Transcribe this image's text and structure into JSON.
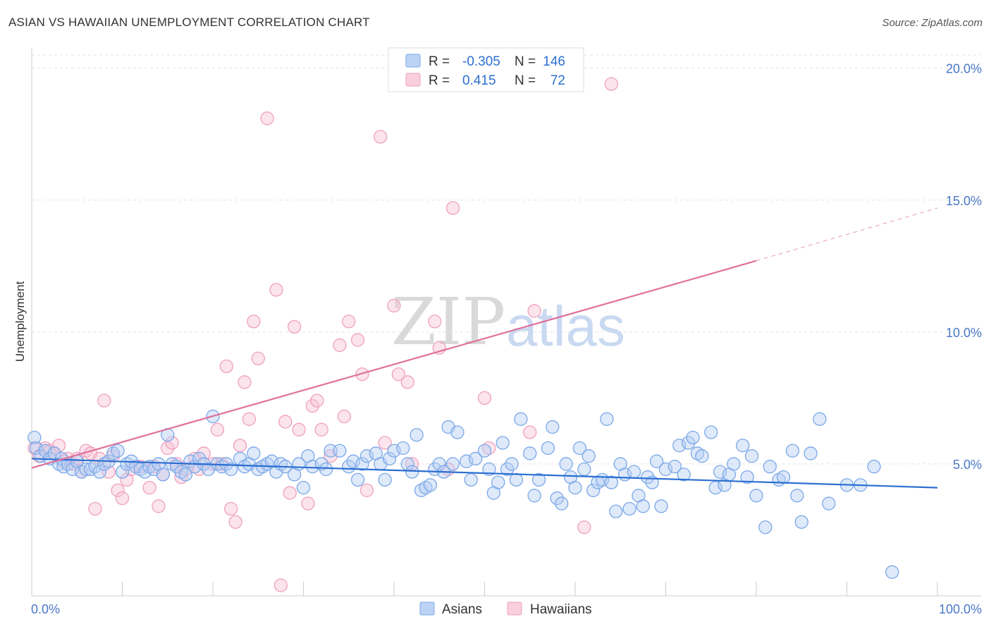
{
  "title": "ASIAN VS HAWAIIAN UNEMPLOYMENT CORRELATION CHART",
  "source": "Source: ZipAtlas.com",
  "watermark": {
    "zip": "ZIP",
    "atlas": "atlas"
  },
  "colors": {
    "asian": "#7aa8e8",
    "asian_line": "#2b6fd0",
    "hawaiian": "#f0a0bd",
    "hawaiian_line": "#e0709a",
    "tick": "#4a78c8"
  },
  "legend_top": {
    "rows": [
      {
        "r_label": "R =",
        "r_value": "-0.305",
        "n_label": "N =",
        "n_value": "146"
      },
      {
        "r_label": "R =",
        "r_value": "0.415",
        "n_label": "N =",
        "n_value": "72"
      }
    ]
  },
  "legend_bottom": [
    "Asians",
    "Hawaiians"
  ],
  "chart_data": {
    "type": "scatter",
    "title": "ASIAN VS HAWAIIAN UNEMPLOYMENT CORRELATION CHART",
    "xlabel": "",
    "ylabel": "Unemployment",
    "xlim": [
      0,
      100
    ],
    "ylim": [
      0,
      20.5
    ],
    "x_tick_labels": [
      "0.0%",
      "100.0%"
    ],
    "y_ticks": [
      5,
      10,
      15,
      20
    ],
    "y_tick_labels": [
      "5.0%",
      "10.0%",
      "15.0%",
      "20.0%"
    ],
    "grid": true,
    "legend_position": "top-center",
    "series": [
      {
        "name": "Asians",
        "r": -0.305,
        "n": 146,
        "trend": {
          "x0": 0,
          "y0": 5.2,
          "x1": 100,
          "y1": 4.1
        },
        "points": [
          [
            0.3,
            6.0
          ],
          [
            0.5,
            5.6
          ],
          [
            1.0,
            5.3
          ],
          [
            1.5,
            5.5
          ],
          [
            2.0,
            5.2
          ],
          [
            2.5,
            5.4
          ],
          [
            3.0,
            5.0
          ],
          [
            3.3,
            5.2
          ],
          [
            3.5,
            4.9
          ],
          [
            4.0,
            5.0
          ],
          [
            4.5,
            4.8
          ],
          [
            5.0,
            5.1
          ],
          [
            5.5,
            4.7
          ],
          [
            6.0,
            4.8
          ],
          [
            6.5,
            4.8
          ],
          [
            7.0,
            4.9
          ],
          [
            7.5,
            4.7
          ],
          [
            8.0,
            5.0
          ],
          [
            8.5,
            5.1
          ],
          [
            9.0,
            5.4
          ],
          [
            9.5,
            5.5
          ],
          [
            10.0,
            4.7
          ],
          [
            10.5,
            5.0
          ],
          [
            11.0,
            5.1
          ],
          [
            11.5,
            4.9
          ],
          [
            12.0,
            4.8
          ],
          [
            12.5,
            4.7
          ],
          [
            13.0,
            4.9
          ],
          [
            13.5,
            4.8
          ],
          [
            14.0,
            5.0
          ],
          [
            14.5,
            4.6
          ],
          [
            15.0,
            6.1
          ],
          [
            15.5,
            5.0
          ],
          [
            16.0,
            4.9
          ],
          [
            16.5,
            4.7
          ],
          [
            17.0,
            4.6
          ],
          [
            17.5,
            5.1
          ],
          [
            18.0,
            4.9
          ],
          [
            18.5,
            5.2
          ],
          [
            19.0,
            5.0
          ],
          [
            19.5,
            4.8
          ],
          [
            20.0,
            6.8
          ],
          [
            20.5,
            5.0
          ],
          [
            21.0,
            4.9
          ],
          [
            21.5,
            5.0
          ],
          [
            22.0,
            4.8
          ],
          [
            23.0,
            5.2
          ],
          [
            23.5,
            4.9
          ],
          [
            24.0,
            5.0
          ],
          [
            24.5,
            5.4
          ],
          [
            25.0,
            4.8
          ],
          [
            25.5,
            4.9
          ],
          [
            26.0,
            5.0
          ],
          [
            26.5,
            5.1
          ],
          [
            27.0,
            4.7
          ],
          [
            27.5,
            5.0
          ],
          [
            28.0,
            4.9
          ],
          [
            29.0,
            4.6
          ],
          [
            29.5,
            5.0
          ],
          [
            30.0,
            4.1
          ],
          [
            30.5,
            5.3
          ],
          [
            31.0,
            4.9
          ],
          [
            32.0,
            5.0
          ],
          [
            32.5,
            4.8
          ],
          [
            33.0,
            5.5
          ],
          [
            34.0,
            5.5
          ],
          [
            35.0,
            4.9
          ],
          [
            35.5,
            5.1
          ],
          [
            36.0,
            4.4
          ],
          [
            36.5,
            5.0
          ],
          [
            37.0,
            5.3
          ],
          [
            38.0,
            5.4
          ],
          [
            38.5,
            5.0
          ],
          [
            39.0,
            4.4
          ],
          [
            39.5,
            5.2
          ],
          [
            40.0,
            5.5
          ],
          [
            41.0,
            5.6
          ],
          [
            41.5,
            5.0
          ],
          [
            42.0,
            4.7
          ],
          [
            42.5,
            6.1
          ],
          [
            43.0,
            4.0
          ],
          [
            43.5,
            4.1
          ],
          [
            44.0,
            4.2
          ],
          [
            44.5,
            4.8
          ],
          [
            45.0,
            5.0
          ],
          [
            45.5,
            4.7
          ],
          [
            46.0,
            6.4
          ],
          [
            46.5,
            5.0
          ],
          [
            47.0,
            6.2
          ],
          [
            48.0,
            5.1
          ],
          [
            48.5,
            4.4
          ],
          [
            49.0,
            5.2
          ],
          [
            50.0,
            5.5
          ],
          [
            50.5,
            4.8
          ],
          [
            51.0,
            3.9
          ],
          [
            51.5,
            4.3
          ],
          [
            52.0,
            5.8
          ],
          [
            52.5,
            4.8
          ],
          [
            53.0,
            5.0
          ],
          [
            53.5,
            4.4
          ],
          [
            54.0,
            6.7
          ],
          [
            55.0,
            5.4
          ],
          [
            55.5,
            3.8
          ],
          [
            56.0,
            4.4
          ],
          [
            57.0,
            5.6
          ],
          [
            57.5,
            6.4
          ],
          [
            58.0,
            3.7
          ],
          [
            58.5,
            3.5
          ],
          [
            59.0,
            5.0
          ],
          [
            59.5,
            4.5
          ],
          [
            60.0,
            4.1
          ],
          [
            60.5,
            5.6
          ],
          [
            61.0,
            4.8
          ],
          [
            61.5,
            5.3
          ],
          [
            62.0,
            4.0
          ],
          [
            62.5,
            4.3
          ],
          [
            63.0,
            4.4
          ],
          [
            63.5,
            6.7
          ],
          [
            64.0,
            4.3
          ],
          [
            64.5,
            3.2
          ],
          [
            65.0,
            5.0
          ],
          [
            65.5,
            4.6
          ],
          [
            66.0,
            3.3
          ],
          [
            66.5,
            4.7
          ],
          [
            67.0,
            3.8
          ],
          [
            67.5,
            3.4
          ],
          [
            68.0,
            4.5
          ],
          [
            68.5,
            4.3
          ],
          [
            69.0,
            5.1
          ],
          [
            69.5,
            3.4
          ],
          [
            70.0,
            4.8
          ],
          [
            71.0,
            4.9
          ],
          [
            71.5,
            5.7
          ],
          [
            72.0,
            4.6
          ],
          [
            72.5,
            5.8
          ],
          [
            73.0,
            6.0
          ],
          [
            73.5,
            5.4
          ],
          [
            74.0,
            5.3
          ],
          [
            75.0,
            6.2
          ],
          [
            75.5,
            4.1
          ],
          [
            76.0,
            4.7
          ],
          [
            76.5,
            4.2
          ],
          [
            77.0,
            4.6
          ],
          [
            77.5,
            5.0
          ],
          [
            78.5,
            5.7
          ],
          [
            79.0,
            4.5
          ],
          [
            79.5,
            5.3
          ],
          [
            80.0,
            3.8
          ],
          [
            81.0,
            2.6
          ],
          [
            81.5,
            4.9
          ],
          [
            82.5,
            4.4
          ],
          [
            83.0,
            4.5
          ],
          [
            84.0,
            5.5
          ],
          [
            84.5,
            3.8
          ],
          [
            85.0,
            2.8
          ],
          [
            86.0,
            5.4
          ],
          [
            87.0,
            6.7
          ],
          [
            88.0,
            3.5
          ],
          [
            90.0,
            4.2
          ],
          [
            91.5,
            4.2
          ],
          [
            93.0,
            4.9
          ],
          [
            95.0,
            0.9
          ]
        ]
      },
      {
        "name": "Hawaiians",
        "r": 0.415,
        "n": 72,
        "trend": {
          "x0": 0,
          "y0": 4.85,
          "x1": 80,
          "y1": 12.7,
          "dash_to_x": 100,
          "dash_to_y": 14.7
        },
        "points": [
          [
            0.3,
            5.6
          ],
          [
            0.8,
            5.3
          ],
          [
            1.5,
            5.6
          ],
          [
            2.0,
            5.5
          ],
          [
            2.5,
            5.4
          ],
          [
            3.0,
            5.7
          ],
          [
            3.5,
            5.1
          ],
          [
            4.0,
            5.2
          ],
          [
            4.5,
            5.0
          ],
          [
            5.0,
            5.2
          ],
          [
            5.5,
            4.7
          ],
          [
            6.0,
            5.5
          ],
          [
            6.5,
            5.4
          ],
          [
            7.0,
            3.3
          ],
          [
            7.5,
            5.2
          ],
          [
            8.0,
            7.4
          ],
          [
            8.5,
            4.7
          ],
          [
            9.0,
            5.3
          ],
          [
            9.5,
            4.0
          ],
          [
            10.0,
            3.7
          ],
          [
            10.5,
            4.4
          ],
          [
            11.0,
            4.8
          ],
          [
            12.0,
            4.9
          ],
          [
            13.0,
            4.1
          ],
          [
            13.5,
            4.9
          ],
          [
            14.0,
            3.4
          ],
          [
            14.5,
            4.6
          ],
          [
            15.0,
            5.6
          ],
          [
            15.5,
            5.8
          ],
          [
            16.0,
            5.0
          ],
          [
            16.5,
            4.5
          ],
          [
            17.0,
            4.8
          ],
          [
            18.0,
            5.2
          ],
          [
            18.5,
            4.8
          ],
          [
            19.0,
            5.4
          ],
          [
            20.0,
            5.0
          ],
          [
            20.5,
            6.3
          ],
          [
            21.0,
            5.0
          ],
          [
            21.5,
            8.7
          ],
          [
            22.0,
            3.3
          ],
          [
            22.5,
            2.8
          ],
          [
            23.0,
            5.7
          ],
          [
            23.5,
            8.1
          ],
          [
            24.0,
            6.7
          ],
          [
            24.5,
            10.4
          ],
          [
            25.0,
            9.0
          ],
          [
            26.0,
            18.1
          ],
          [
            27.0,
            11.6
          ],
          [
            27.5,
            0.4
          ],
          [
            28.0,
            6.6
          ],
          [
            28.5,
            3.9
          ],
          [
            29.0,
            10.2
          ],
          [
            29.5,
            6.3
          ],
          [
            30.5,
            3.5
          ],
          [
            31.0,
            7.2
          ],
          [
            31.5,
            7.4
          ],
          [
            32.0,
            6.3
          ],
          [
            33.0,
            5.3
          ],
          [
            34.0,
            9.5
          ],
          [
            34.5,
            6.8
          ],
          [
            35.0,
            10.4
          ],
          [
            36.0,
            9.7
          ],
          [
            36.5,
            8.4
          ],
          [
            37.0,
            4.0
          ],
          [
            38.5,
            17.4
          ],
          [
            39.0,
            5.8
          ],
          [
            40.0,
            11.0
          ],
          [
            40.5,
            8.4
          ],
          [
            41.5,
            8.1
          ],
          [
            42.0,
            5.0
          ],
          [
            44.5,
            10.4
          ],
          [
            45.0,
            9.4
          ],
          [
            46.0,
            4.8
          ],
          [
            46.5,
            14.7
          ],
          [
            50.0,
            7.5
          ],
          [
            50.5,
            5.6
          ],
          [
            55.0,
            6.2
          ],
          [
            55.5,
            10.8
          ],
          [
            61.0,
            2.6
          ],
          [
            64.0,
            19.4
          ]
        ]
      }
    ]
  }
}
